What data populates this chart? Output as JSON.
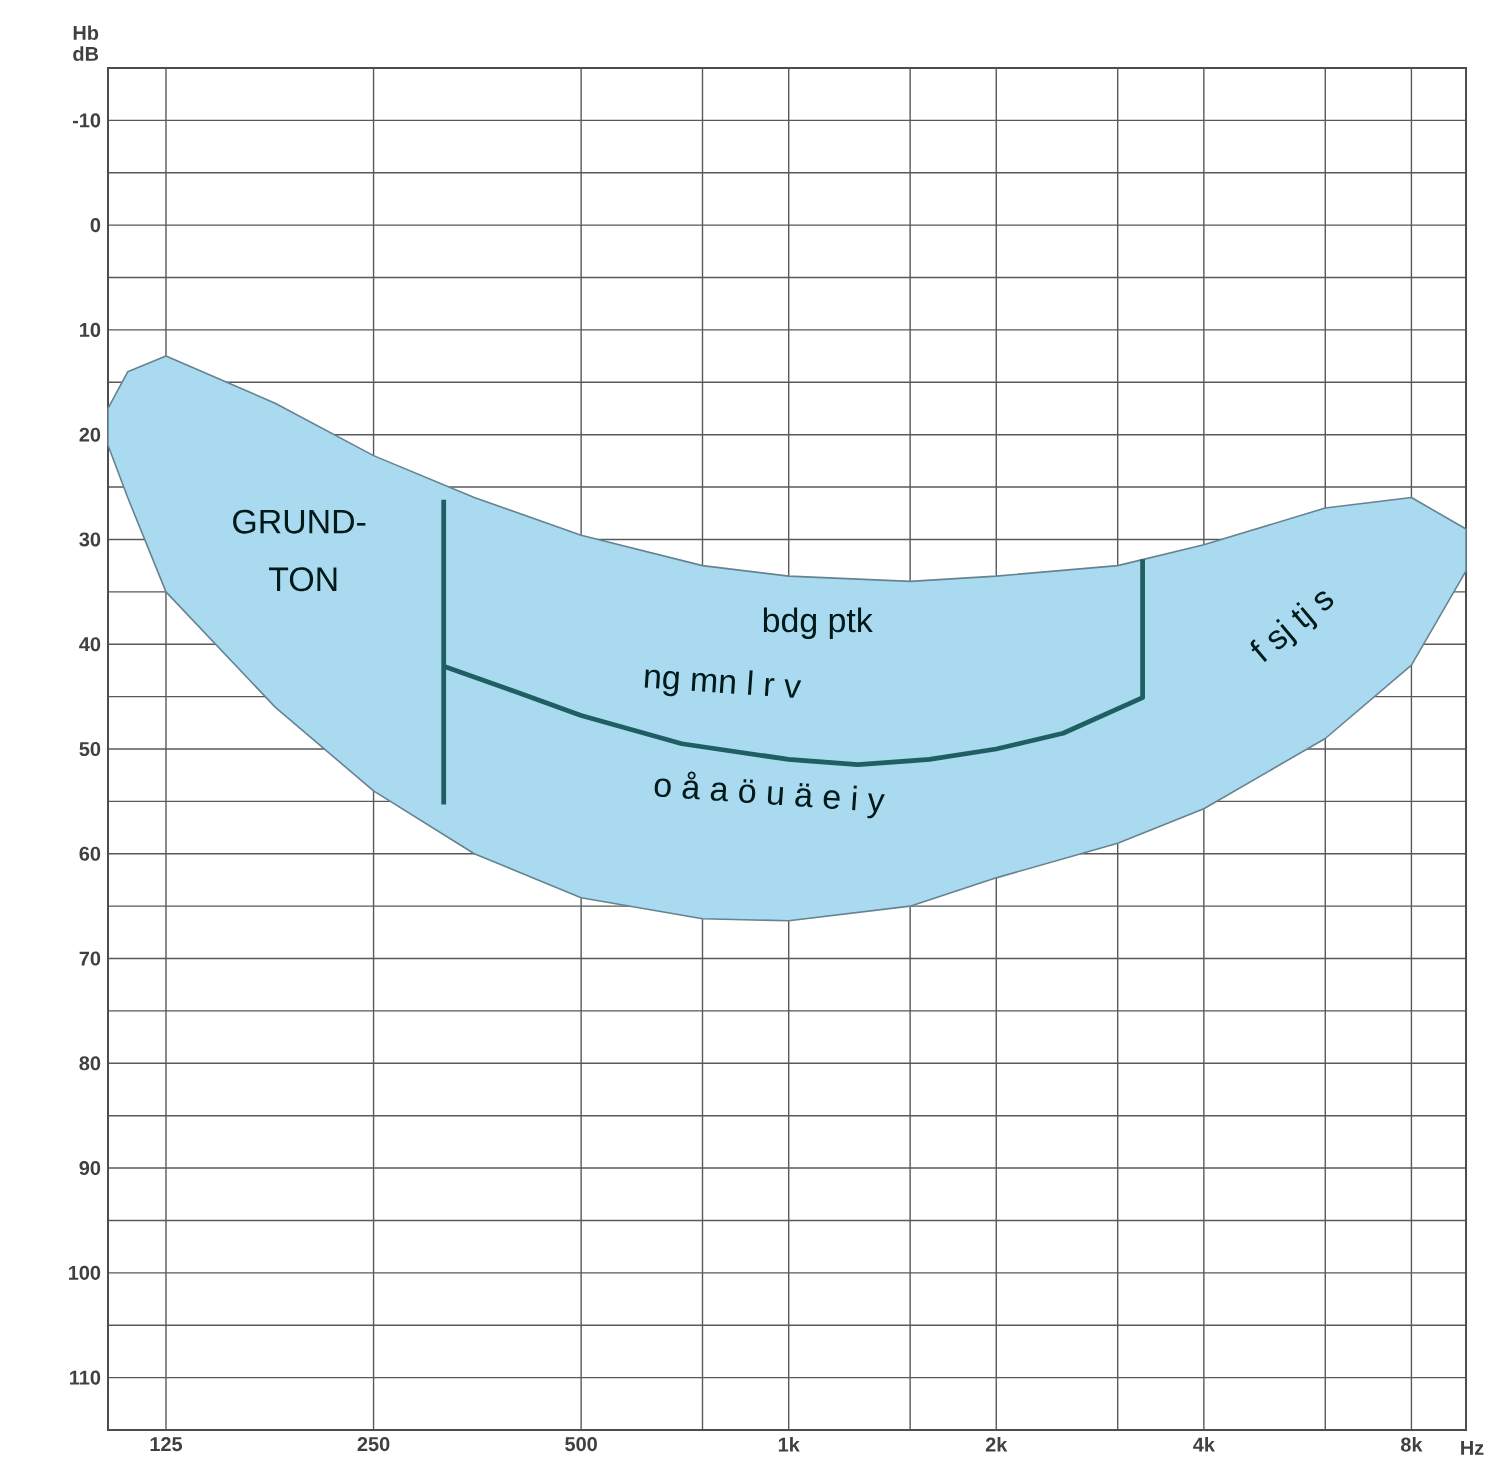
{
  "chart_data": {
    "type": "area",
    "ylabel": "Hb dB",
    "xlabel": "Hz",
    "xlim": [
      103,
      9600
    ],
    "ylim": [
      115,
      -15
    ],
    "log": "x",
    "grid": true,
    "xticks": [
      {
        "value": 125,
        "label": "125"
      },
      {
        "value": 250,
        "label": "250"
      },
      {
        "value": 500,
        "label": "500"
      },
      {
        "value": 750,
        "label": null
      },
      {
        "value": 1000,
        "label": "1k"
      },
      {
        "value": 1500,
        "label": null
      },
      {
        "value": 2000,
        "label": "2k"
      },
      {
        "value": 3000,
        "label": null
      },
      {
        "value": 4000,
        "label": "4k"
      },
      {
        "value": 6000,
        "label": null
      },
      {
        "value": 8000,
        "label": "8k"
      }
    ],
    "yticks": [
      -10,
      {
        "value": -5,
        "label": null
      },
      0,
      {
        "value": 5,
        "label": null
      },
      10,
      {
        "value": 15,
        "label": null
      },
      20,
      {
        "value": 25,
        "label": null
      },
      30,
      {
        "value": 35,
        "label": null
      },
      40,
      {
        "value": 45,
        "label": null
      },
      50,
      {
        "value": 55,
        "label": null
      },
      60,
      {
        "value": 65,
        "label": null
      },
      70,
      {
        "value": 75,
        "label": null
      },
      80,
      {
        "value": 85,
        "label": null
      },
      90,
      {
        "value": 95,
        "label": null
      },
      100,
      {
        "value": 105,
        "label": null
      },
      110
    ],
    "series": [
      {
        "type": "line",
        "color": "#a9daf0",
        "x": [
          103,
          110,
          125,
          180,
          250,
          350,
          500,
          750,
          1000,
          1500,
          2000,
          3000,
          4000,
          6000,
          8000,
          9600
        ],
        "values": [
          null,
          null,
          null,
          null,
          null,
          null,
          null,
          null,
          null,
          null,
          null,
          null,
          null,
          null,
          null,
          null
        ],
        "lower": [
          17.5,
          14,
          12.5,
          17,
          22,
          26,
          29.6,
          32.5,
          33.5,
          34,
          33.5,
          32.5,
          30.5,
          27,
          26,
          29
        ],
        "upper": [
          21,
          26,
          35,
          46,
          54,
          60,
          64.2,
          66.2,
          66.4,
          65,
          62.3,
          59,
          55.7,
          49,
          42,
          33
        ]
      },
      {
        "type": "line",
        "color": "#1f5f63",
        "x": [
          316,
          316
        ],
        "values": [
          26.2,
          55.3
        ]
      },
      {
        "type": "line",
        "color": "#1f5f63",
        "x": [
          316,
          400,
          500,
          700,
          1000,
          1260,
          1600,
          2000,
          2500,
          3260,
          3260
        ],
        "values": [
          42.1,
          44.5,
          46.8,
          49.5,
          51,
          51.5,
          51,
          50,
          48.5,
          45.1,
          31.9
        ]
      }
    ],
    "annotations": [
      "GRUND-",
      "TON",
      "bdg ptk",
      "ng mn l r v",
      "o å a ö u ä e i y",
      "f sj tj s"
    ]
  }
}
